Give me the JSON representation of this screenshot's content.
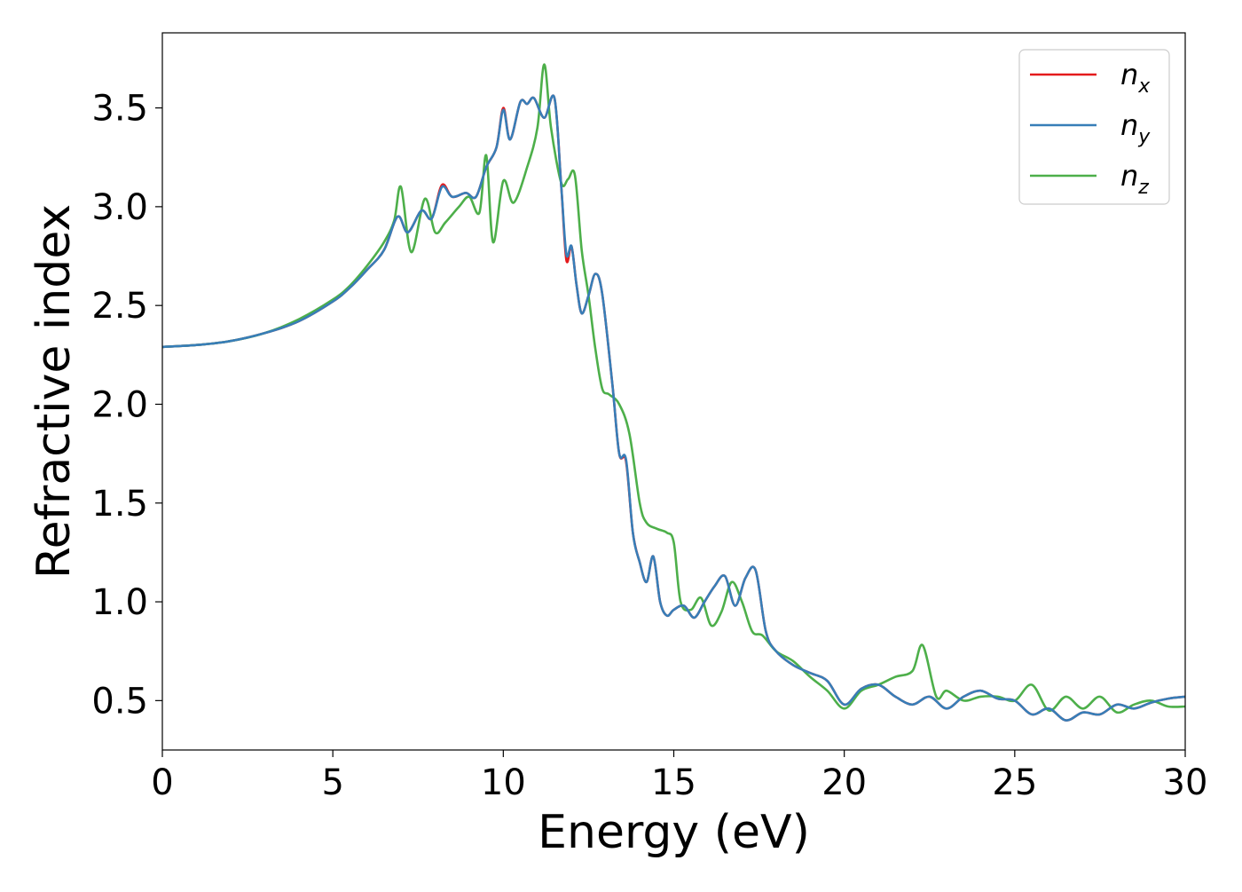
{
  "chart_data": {
    "type": "line",
    "xlabel": "Energy (eV)",
    "ylabel": "Refractive index",
    "xlim": [
      0,
      30
    ],
    "ylim": [
      0.25,
      3.88
    ],
    "x_ticks": [
      0,
      5,
      10,
      15,
      20,
      25,
      30
    ],
    "x_tick_labels": [
      "0",
      "5",
      "10",
      "15",
      "20",
      "25",
      "30"
    ],
    "y_ticks": [
      0.5,
      1.0,
      1.5,
      2.0,
      2.5,
      3.0,
      3.5
    ],
    "y_tick_labels": [
      "0.5",
      "1.0",
      "1.5",
      "2.0",
      "2.5",
      "3.0",
      "3.5"
    ],
    "grid": false,
    "legend_position": "top-right",
    "colors": {
      "nx": "#e41a1c",
      "ny": "#377eb8",
      "nz": "#4daf4a"
    },
    "series": [
      {
        "name": "n",
        "sub": "x",
        "key": "nx",
        "x": [
          0,
          1,
          2,
          3,
          4,
          5,
          5.5,
          6,
          6.5,
          6.9,
          7.2,
          7.6,
          7.9,
          8.2,
          8.5,
          8.9,
          9.2,
          9.5,
          9.8,
          10.0,
          10.2,
          10.5,
          10.7,
          10.9,
          11.2,
          11.5,
          11.7,
          11.85,
          12.0,
          12.15,
          12.3,
          12.5,
          12.7,
          12.9,
          13.2,
          13.4,
          13.6,
          13.8,
          14.0,
          14.2,
          14.4,
          14.6,
          14.8,
          15.0,
          15.3,
          15.6,
          15.9,
          16.2,
          16.5,
          16.8,
          17.1,
          17.4,
          17.7,
          18.0,
          18.5,
          19.0,
          19.5,
          20.0,
          20.5,
          21.0,
          21.5,
          22.0,
          22.5,
          23.0,
          23.5,
          24.0,
          24.5,
          25.0,
          25.5,
          26.0,
          26.5,
          27.0,
          27.5,
          28.0,
          28.5,
          29.0,
          29.5,
          30.0
        ],
        "y": [
          2.29,
          2.3,
          2.32,
          2.36,
          2.42,
          2.52,
          2.59,
          2.68,
          2.78,
          2.95,
          2.87,
          2.98,
          2.94,
          3.11,
          3.05,
          3.07,
          3.05,
          3.2,
          3.3,
          3.5,
          3.34,
          3.53,
          3.52,
          3.55,
          3.45,
          3.55,
          3.1,
          2.73,
          2.8,
          2.6,
          2.46,
          2.55,
          2.66,
          2.56,
          2.1,
          1.75,
          1.71,
          1.35,
          1.2,
          1.1,
          1.23,
          1.0,
          0.93,
          0.96,
          0.98,
          0.92,
          1.0,
          1.08,
          1.13,
          0.98,
          1.12,
          1.16,
          0.85,
          0.75,
          0.68,
          0.64,
          0.6,
          0.48,
          0.56,
          0.58,
          0.52,
          0.48,
          0.52,
          0.46,
          0.52,
          0.55,
          0.51,
          0.5,
          0.43,
          0.46,
          0.4,
          0.44,
          0.43,
          0.48,
          0.46,
          0.49,
          0.51,
          0.52
        ]
      },
      {
        "name": "n",
        "sub": "y",
        "key": "ny",
        "x": [
          0,
          1,
          2,
          3,
          4,
          5,
          5.5,
          6,
          6.5,
          6.9,
          7.2,
          7.6,
          7.9,
          8.2,
          8.5,
          8.9,
          9.2,
          9.5,
          9.8,
          10.0,
          10.2,
          10.5,
          10.7,
          10.9,
          11.2,
          11.5,
          11.7,
          11.85,
          12.0,
          12.15,
          12.3,
          12.5,
          12.7,
          12.9,
          13.2,
          13.4,
          13.6,
          13.8,
          14.0,
          14.2,
          14.4,
          14.6,
          14.8,
          15.0,
          15.3,
          15.6,
          15.9,
          16.2,
          16.5,
          16.8,
          17.1,
          17.4,
          17.7,
          18.0,
          18.5,
          19.0,
          19.5,
          20.0,
          20.5,
          21.0,
          21.5,
          22.0,
          22.5,
          23.0,
          23.5,
          24.0,
          24.5,
          25.0,
          25.5,
          26.0,
          26.5,
          27.0,
          27.5,
          28.0,
          28.5,
          29.0,
          29.5,
          30.0
        ],
        "y": [
          2.29,
          2.3,
          2.32,
          2.36,
          2.42,
          2.52,
          2.59,
          2.68,
          2.78,
          2.95,
          2.87,
          2.98,
          2.94,
          3.1,
          3.05,
          3.07,
          3.05,
          3.2,
          3.3,
          3.49,
          3.34,
          3.53,
          3.52,
          3.55,
          3.45,
          3.55,
          3.1,
          2.76,
          2.8,
          2.6,
          2.46,
          2.55,
          2.66,
          2.56,
          2.1,
          1.75,
          1.72,
          1.35,
          1.2,
          1.1,
          1.23,
          1.0,
          0.93,
          0.96,
          0.98,
          0.92,
          1.0,
          1.08,
          1.13,
          0.98,
          1.12,
          1.16,
          0.85,
          0.75,
          0.68,
          0.64,
          0.6,
          0.48,
          0.56,
          0.58,
          0.52,
          0.48,
          0.52,
          0.46,
          0.52,
          0.55,
          0.51,
          0.5,
          0.43,
          0.46,
          0.4,
          0.44,
          0.43,
          0.48,
          0.46,
          0.49,
          0.51,
          0.52
        ]
      },
      {
        "name": "n",
        "sub": "z",
        "key": "nz",
        "x": [
          0,
          1,
          2,
          3,
          4,
          5,
          5.5,
          6,
          6.5,
          6.8,
          7.0,
          7.3,
          7.7,
          8.0,
          8.3,
          8.7,
          9.0,
          9.3,
          9.5,
          9.7,
          10.0,
          10.3,
          10.7,
          11.0,
          11.2,
          11.4,
          11.7,
          11.9,
          12.1,
          12.3,
          12.5,
          12.7,
          12.9,
          13.1,
          13.4,
          13.7,
          14.0,
          14.2,
          14.5,
          14.8,
          15.0,
          15.2,
          15.5,
          15.8,
          16.1,
          16.4,
          16.7,
          17.0,
          17.3,
          17.6,
          18.0,
          18.5,
          19.0,
          19.5,
          20.0,
          20.5,
          21.0,
          21.5,
          22.0,
          22.3,
          22.7,
          23.0,
          23.5,
          24.0,
          24.5,
          25.0,
          25.5,
          26.0,
          26.5,
          27.0,
          27.5,
          28.0,
          28.5,
          29.0,
          29.5,
          30.0
        ],
        "y": [
          2.29,
          2.3,
          2.32,
          2.36,
          2.43,
          2.53,
          2.6,
          2.7,
          2.82,
          2.93,
          3.1,
          2.77,
          3.04,
          2.87,
          2.92,
          3.0,
          3.05,
          2.97,
          3.26,
          2.82,
          3.13,
          3.02,
          3.2,
          3.4,
          3.72,
          3.4,
          3.12,
          3.14,
          3.16,
          2.78,
          2.55,
          2.28,
          2.08,
          2.05,
          2.0,
          1.85,
          1.5,
          1.4,
          1.37,
          1.35,
          1.3,
          1.0,
          0.96,
          1.02,
          0.88,
          0.95,
          1.1,
          1.0,
          0.85,
          0.83,
          0.75,
          0.7,
          0.62,
          0.55,
          0.46,
          0.55,
          0.58,
          0.62,
          0.65,
          0.78,
          0.52,
          0.55,
          0.5,
          0.52,
          0.52,
          0.5,
          0.58,
          0.45,
          0.52,
          0.46,
          0.52,
          0.44,
          0.48,
          0.5,
          0.47,
          0.47
        ]
      }
    ]
  }
}
